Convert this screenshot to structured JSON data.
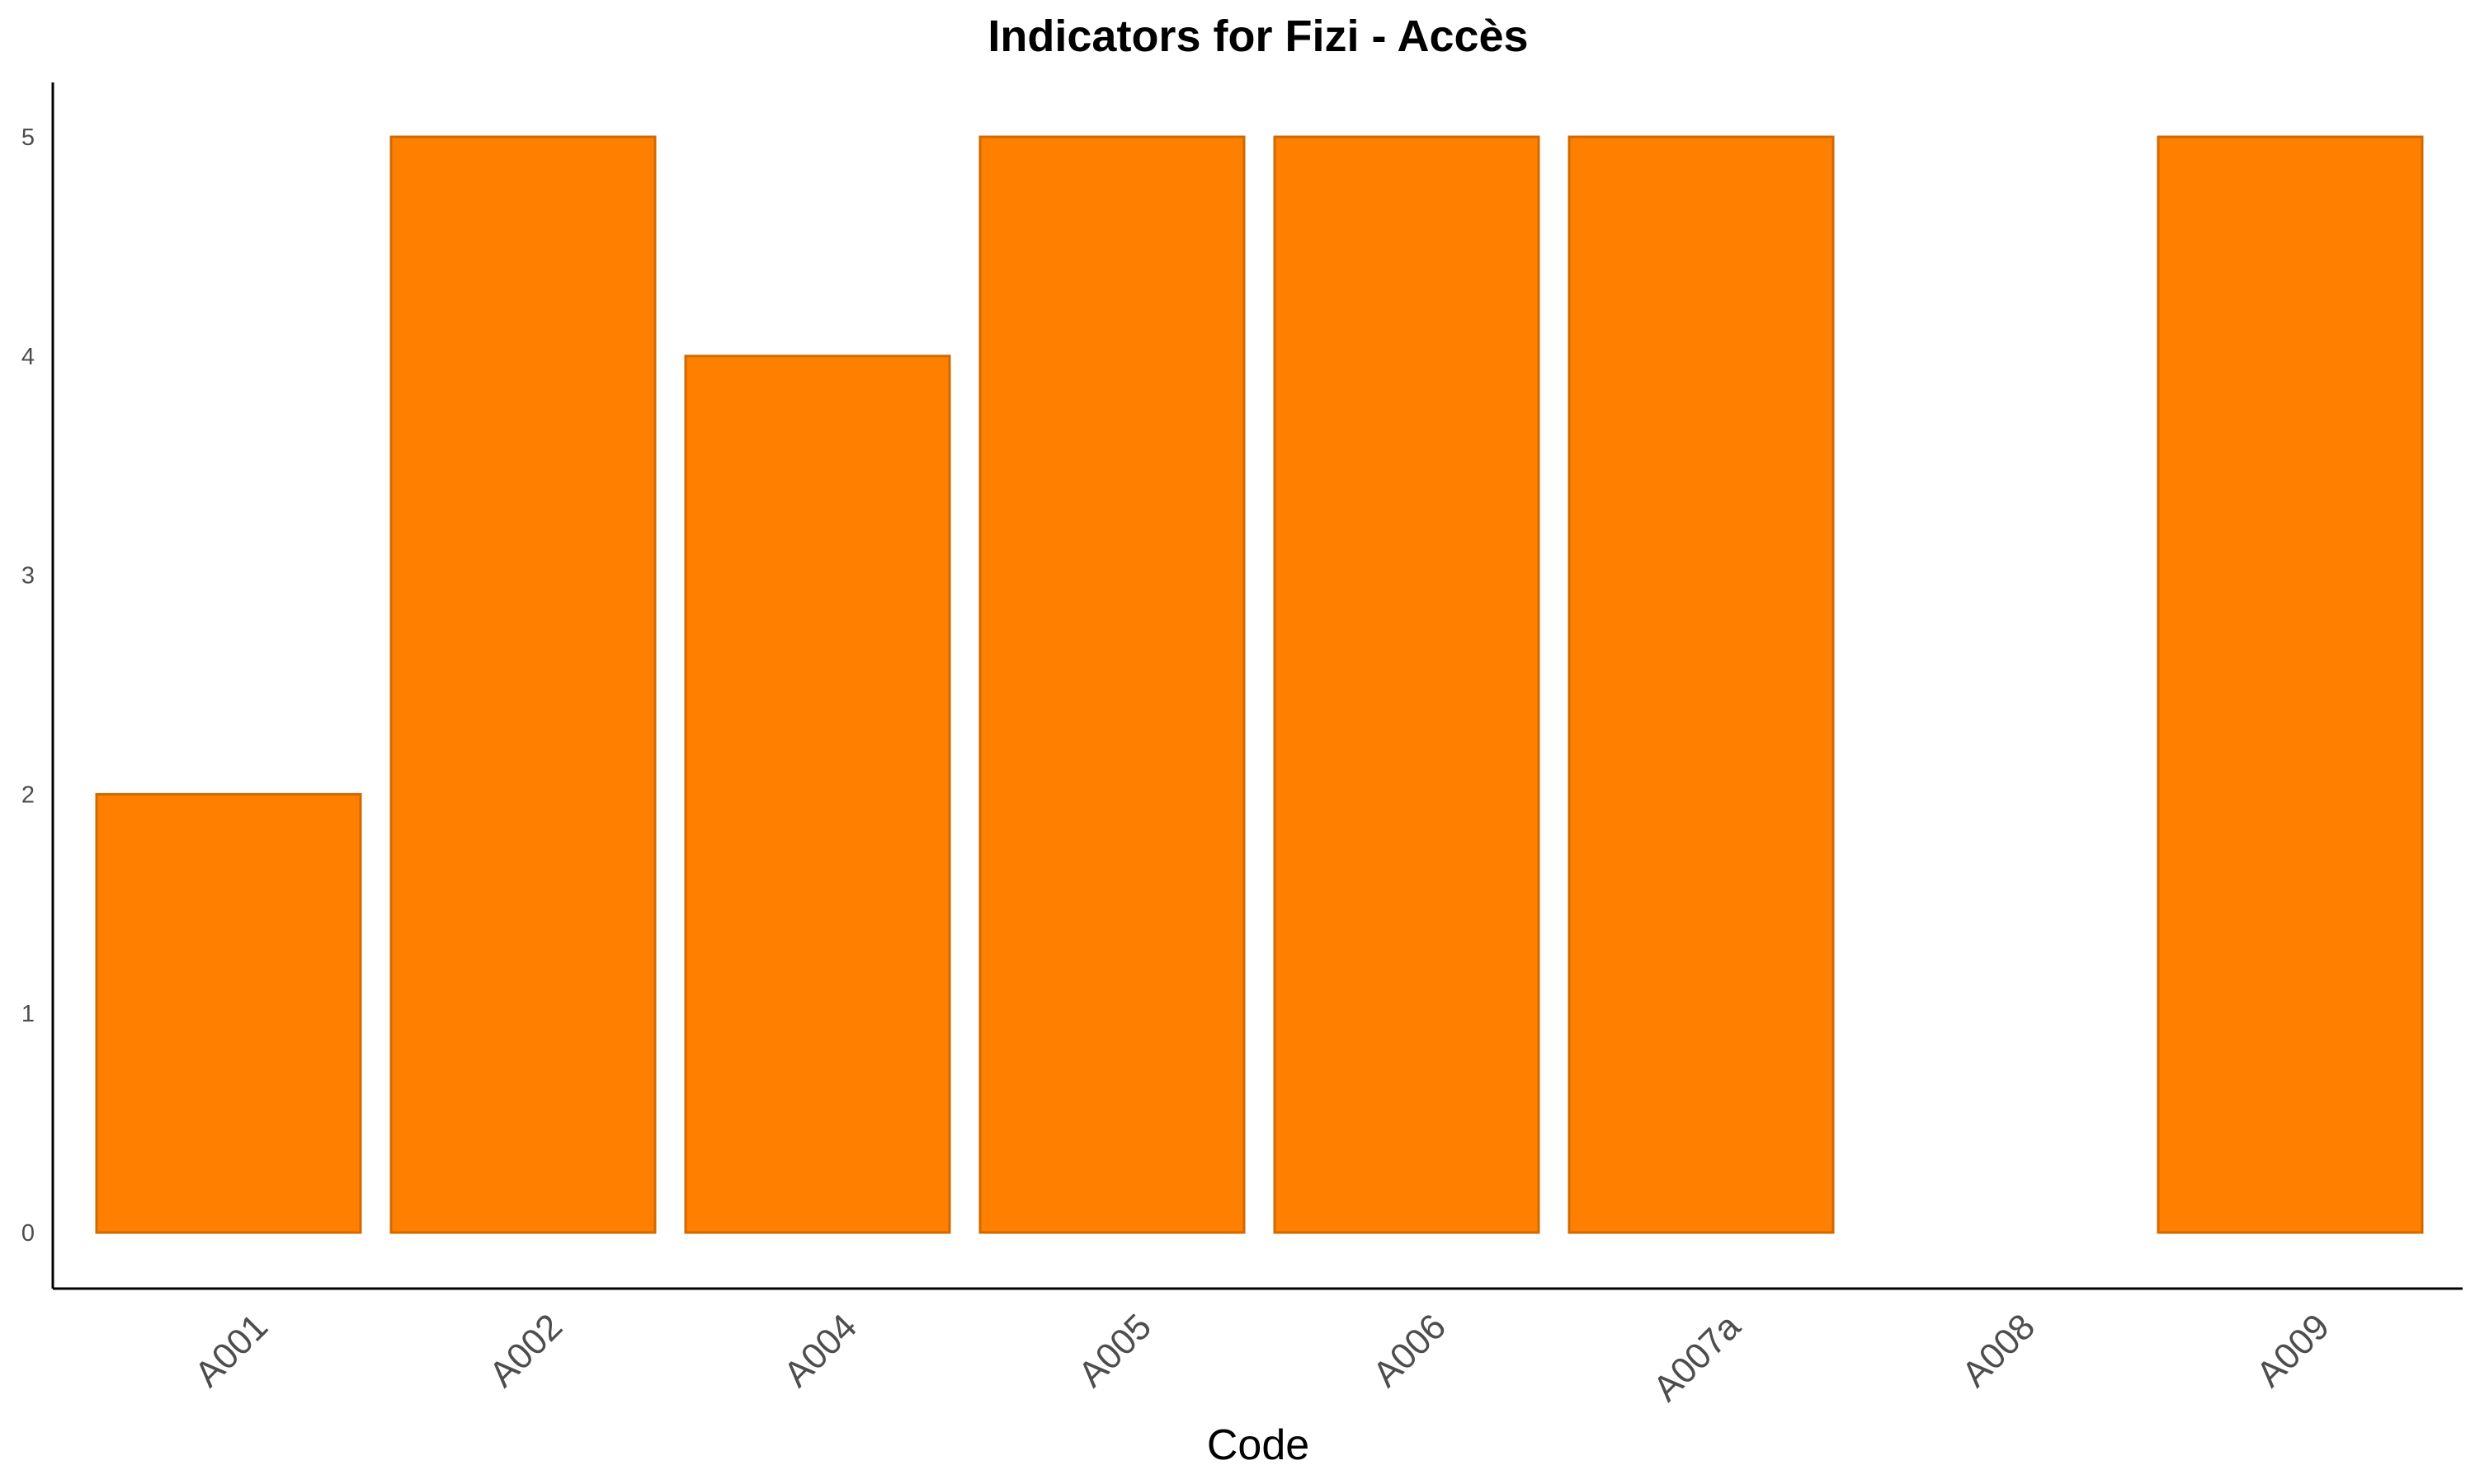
{
  "chart_data": {
    "type": "bar",
    "title": "Indicators for Fizi - Accès",
    "xlabel": "Code",
    "ylabel": "",
    "categories": [
      "A001",
      "A002",
      "A004",
      "A005",
      "A006",
      "A007a",
      "A008",
      "A009"
    ],
    "values": [
      2,
      5,
      4,
      5,
      5,
      5,
      0,
      5
    ],
    "ylim": [
      0,
      5
    ],
    "yticks": [
      "0",
      "1",
      "2",
      "3",
      "4",
      "5"
    ],
    "grid": false,
    "legend": "none",
    "colors": {
      "bar_fill": "#FF8000",
      "bar_stroke": "#D06A00"
    }
  }
}
